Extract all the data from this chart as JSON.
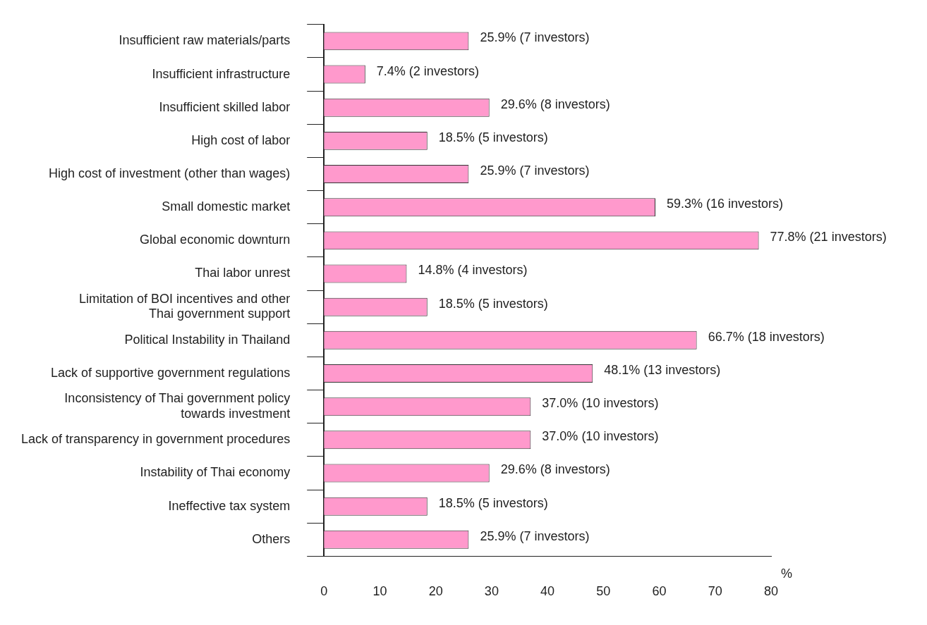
{
  "chart_data": {
    "type": "bar",
    "orientation": "horizontal",
    "xlabel": "%",
    "categories": [
      "Insufficient raw materials/parts",
      "Insufficient infrastructure",
      "Insufficient skilled labor",
      "High cost of labor",
      "High cost of investment (other than wages)",
      "Small domestic market",
      "Global economic downturn",
      "Thai labor unrest",
      "Limitation of BOI incentives and other\nThai government support",
      "Political Instability in Thailand",
      "Lack of supportive government regulations",
      "Inconsistency of Thai government policy\ntowards investment",
      "Lack of transparency in government procedures",
      "Instability of Thai economy",
      "Ineffective tax system",
      "Others"
    ],
    "values": [
      25.9,
      7.4,
      29.6,
      18.5,
      25.9,
      59.3,
      77.8,
      14.8,
      18.5,
      66.7,
      48.1,
      37.0,
      37.0,
      29.6,
      18.5,
      25.9
    ],
    "value_labels": [
      "25.9% (7 investors)",
      "7.4% (2 investors)",
      "29.6% (8 investors)",
      "18.5% (5 investors)",
      "25.9% (7 investors)",
      "59.3% (16 investors)",
      "77.8% (21 investors)",
      "14.8% (4 investors)",
      "18.5% (5 investors)",
      "66.7% (18 investors)",
      "48.1% (13 investors)",
      "37.0% (10 investors)",
      "37.0% (10 investors)",
      "29.6% (8 investors)",
      "18.5% (5 investors)",
      "25.9% (7 investors)"
    ],
    "color": "#ff99cc",
    "xlim": [
      0,
      80
    ],
    "xticks": [
      0,
      10,
      20,
      30,
      40,
      50,
      60,
      70,
      80
    ],
    "grid": false,
    "legend": false
  }
}
